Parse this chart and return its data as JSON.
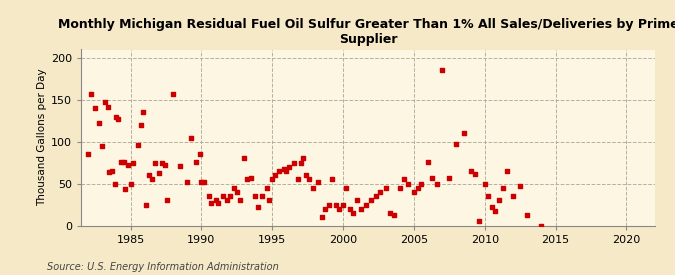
{
  "title": "Monthly Michigan Residual Fuel Oil Sulfur Greater Than 1% All Sales/Deliveries by Prime\nSupplier",
  "ylabel": "Thousand Gallons per Day",
  "source": "Source: U.S. Energy Information Administration",
  "fig_background_color": "#f5e9c8",
  "plot_background_color": "#fdf6e3",
  "dot_color": "#cc0000",
  "grid_color": "#b0a898",
  "xlim": [
    1981.5,
    2022
  ],
  "ylim": [
    0,
    210
  ],
  "yticks": [
    0,
    50,
    100,
    150,
    200
  ],
  "xticks": [
    1985,
    1990,
    1995,
    2000,
    2005,
    2010,
    2015,
    2020
  ],
  "data": [
    [
      1982.0,
      85
    ],
    [
      1982.2,
      157
    ],
    [
      1982.5,
      140
    ],
    [
      1982.8,
      122
    ],
    [
      1983.0,
      95
    ],
    [
      1983.2,
      147
    ],
    [
      1983.4,
      141
    ],
    [
      1983.5,
      64
    ],
    [
      1983.7,
      65
    ],
    [
      1983.9,
      50
    ],
    [
      1984.0,
      130
    ],
    [
      1984.1,
      127
    ],
    [
      1984.3,
      76
    ],
    [
      1984.5,
      76
    ],
    [
      1984.6,
      44
    ],
    [
      1984.8,
      72
    ],
    [
      1985.0,
      50
    ],
    [
      1985.2,
      75
    ],
    [
      1985.5,
      96
    ],
    [
      1985.7,
      120
    ],
    [
      1985.9,
      135
    ],
    [
      1986.1,
      25
    ],
    [
      1986.3,
      60
    ],
    [
      1986.5,
      56
    ],
    [
      1986.7,
      75
    ],
    [
      1987.0,
      63
    ],
    [
      1987.2,
      75
    ],
    [
      1987.4,
      72
    ],
    [
      1987.6,
      30
    ],
    [
      1988.0,
      157
    ],
    [
      1988.5,
      71
    ],
    [
      1989.0,
      52
    ],
    [
      1989.3,
      105
    ],
    [
      1989.6,
      76
    ],
    [
      1989.9,
      85
    ],
    [
      1990.0,
      52
    ],
    [
      1990.2,
      52
    ],
    [
      1990.5,
      35
    ],
    [
      1990.7,
      27
    ],
    [
      1991.0,
      30
    ],
    [
      1991.2,
      27
    ],
    [
      1991.5,
      35
    ],
    [
      1991.8,
      30
    ],
    [
      1992.0,
      35
    ],
    [
      1992.3,
      45
    ],
    [
      1992.5,
      40
    ],
    [
      1992.7,
      30
    ],
    [
      1993.0,
      80
    ],
    [
      1993.2,
      55
    ],
    [
      1993.5,
      57
    ],
    [
      1993.8,
      35
    ],
    [
      1994.0,
      22
    ],
    [
      1994.3,
      35
    ],
    [
      1994.6,
      45
    ],
    [
      1994.8,
      30
    ],
    [
      1995.0,
      55
    ],
    [
      1995.2,
      60
    ],
    [
      1995.5,
      65
    ],
    [
      1995.8,
      68
    ],
    [
      1996.0,
      65
    ],
    [
      1996.2,
      70
    ],
    [
      1996.5,
      75
    ],
    [
      1996.8,
      55
    ],
    [
      1997.0,
      75
    ],
    [
      1997.2,
      80
    ],
    [
      1997.4,
      60
    ],
    [
      1997.6,
      55
    ],
    [
      1997.9,
      45
    ],
    [
      1998.2,
      52
    ],
    [
      1998.5,
      10
    ],
    [
      1998.7,
      20
    ],
    [
      1999.0,
      25
    ],
    [
      1999.2,
      55
    ],
    [
      1999.5,
      25
    ],
    [
      1999.7,
      20
    ],
    [
      2000.0,
      25
    ],
    [
      2000.2,
      45
    ],
    [
      2000.5,
      20
    ],
    [
      2000.7,
      15
    ],
    [
      2001.0,
      30
    ],
    [
      2001.3,
      20
    ],
    [
      2001.6,
      25
    ],
    [
      2002.0,
      30
    ],
    [
      2002.3,
      35
    ],
    [
      2002.6,
      40
    ],
    [
      2003.0,
      45
    ],
    [
      2003.3,
      15
    ],
    [
      2003.6,
      13
    ],
    [
      2004.0,
      45
    ],
    [
      2004.3,
      55
    ],
    [
      2004.6,
      50
    ],
    [
      2005.0,
      40
    ],
    [
      2005.3,
      45
    ],
    [
      2005.5,
      50
    ],
    [
      2006.0,
      76
    ],
    [
      2006.3,
      57
    ],
    [
      2006.6,
      50
    ],
    [
      2007.0,
      185
    ],
    [
      2007.5,
      57
    ],
    [
      2008.0,
      97
    ],
    [
      2008.5,
      110
    ],
    [
      2009.0,
      65
    ],
    [
      2009.3,
      62
    ],
    [
      2009.6,
      5
    ],
    [
      2010.0,
      50
    ],
    [
      2010.2,
      35
    ],
    [
      2010.5,
      22
    ],
    [
      2010.7,
      17
    ],
    [
      2011.0,
      30
    ],
    [
      2011.3,
      45
    ],
    [
      2011.6,
      65
    ],
    [
      2012.0,
      35
    ],
    [
      2012.5,
      47
    ],
    [
      2013.0,
      12
    ],
    [
      2014.0,
      0
    ]
  ]
}
